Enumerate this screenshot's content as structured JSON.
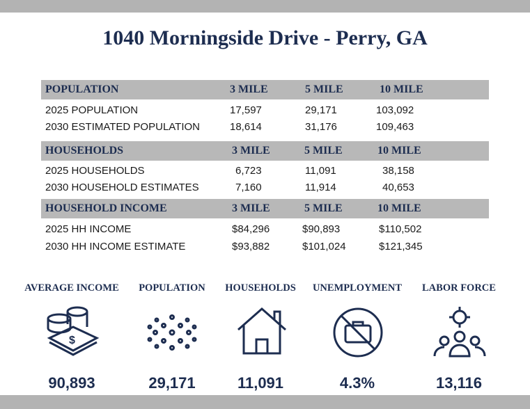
{
  "title": "1040 Morningside Drive - Perry, GA",
  "sections": [
    {
      "header": "POPULATION",
      "columns": [
        "3 MILE",
        "5 MILE",
        "10 MILE"
      ],
      "rows": [
        {
          "label": "2025 POPULATION",
          "values": [
            "17,597",
            "29,171",
            "103,092"
          ]
        },
        {
          "label": "2030 ESTIMATED POPULATION",
          "values": [
            "18,614",
            "31,176",
            "109,463"
          ]
        }
      ]
    },
    {
      "header": "HOUSEHOLDS",
      "columns": [
        "3 MILE",
        "5 MILE",
        "10 MILE"
      ],
      "rows": [
        {
          "label": "2025 HOUSEHOLDS",
          "values": [
            "6,723",
            "11,091",
            "38,158"
          ]
        },
        {
          "label": "2030 HOUSEHOLD ESTIMATES",
          "values": [
            "7,160",
            "11,914",
            "40,653"
          ]
        }
      ]
    },
    {
      "header": "HOUSEHOLD INCOME",
      "columns": [
        "3 MILE",
        "5 MILE",
        "10 MILE"
      ],
      "rows": [
        {
          "label": "2025 HH INCOME",
          "values": [
            "$84,296",
            "$90,893",
            "$110,502"
          ]
        },
        {
          "label": "2030 HH INCOME ESTIMATE",
          "values": [
            "$93,882",
            "$101,024",
            "$121,345"
          ]
        }
      ]
    }
  ],
  "stats": [
    {
      "label": "AVERAGE INCOME",
      "value": "90,893"
    },
    {
      "label": "POPULATION",
      "value": "29,171"
    },
    {
      "label": "HOUSEHOLDS",
      "value": "11,091"
    },
    {
      "label": "UNEMPLOYMENT",
      "value": "4.3%"
    },
    {
      "label": "LABOR FORCE",
      "value": "13,116"
    }
  ]
}
